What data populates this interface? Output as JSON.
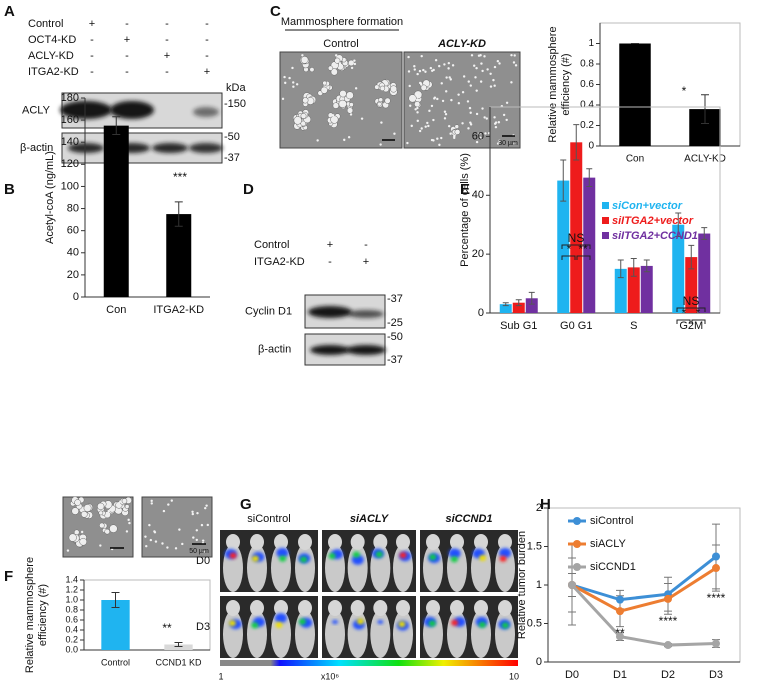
{
  "blot_A": {
    "label": "A",
    "rows": [
      {
        "name": "Control",
        "signs": [
          "+",
          "-",
          "-",
          "-"
        ]
      },
      {
        "name": "OCT4-KD",
        "signs": [
          "-",
          "+",
          "-",
          "-"
        ]
      },
      {
        "name": "ACLY-KD",
        "signs": [
          "-",
          "-",
          "+",
          "-"
        ]
      },
      {
        "name": "ITGA2-KD",
        "signs": [
          "-",
          "-",
          "-",
          "+"
        ]
      }
    ],
    "unit": "kDa",
    "bands": [
      {
        "name": "ACLY",
        "markers": [
          "-150"
        ]
      },
      {
        "name": "β-actin",
        "markers": [
          "-50",
          "-37"
        ]
      }
    ]
  },
  "images_C": {
    "label": "C",
    "title": "Mammosphere formation",
    "columns": [
      "Control",
      "ACLY-KD"
    ],
    "scale_bar": "30 µm"
  },
  "blot_D": {
    "label": "D",
    "rows": [
      {
        "name": "Control",
        "signs": [
          "+",
          "-"
        ]
      },
      {
        "name": "ITGA2-KD",
        "signs": [
          "-",
          "+"
        ]
      }
    ],
    "bands": [
      {
        "name": "Cyclin D1",
        "markers": [
          "-37",
          "-25"
        ]
      },
      {
        "name": "β-actin",
        "markers": [
          "-50",
          "-37"
        ]
      }
    ]
  },
  "images_F": {
    "scale_bar": "50 µm"
  },
  "images_G": {
    "label": "G",
    "columns": [
      "siControl",
      "siACLY",
      "siCCND1"
    ],
    "rows": [
      "D0",
      "D3"
    ],
    "colorbar": [
      "1",
      "x10⁶",
      "10"
    ]
  },
  "chart_data": [
    {
      "type": "bar",
      "ylabel": [
        "Relative mammosphere",
        "efficiency (#)"
      ],
      "categories": [
        "Con",
        "ACLY-KD"
      ],
      "values": [
        1,
        0.36
      ],
      "errors": [
        0,
        0.14
      ],
      "color": "#000000",
      "ylim": [
        0,
        1.2
      ],
      "yticks": [
        0,
        0.2,
        0.4,
        0.6,
        0.8,
        1
      ],
      "annotations": [
        "*"
      ]
    },
    {
      "type": "bar",
      "panel": "B",
      "ylabel": "Acetyl-coA (ng/mL)",
      "categories": [
        "Con",
        "ITGA2-KD"
      ],
      "values": [
        155,
        75
      ],
      "errors": [
        8,
        11
      ],
      "color": "#000000",
      "ylim": [
        0,
        180
      ],
      "yticks": [
        0,
        20,
        40,
        60,
        80,
        100,
        120,
        140,
        160,
        180
      ],
      "annotations": [
        "***"
      ]
    },
    {
      "type": "bar",
      "panel": "E",
      "ylabel": "Percentage of cells (%)",
      "categories": [
        "Sub G1",
        "G0 G1",
        "S",
        "G2M"
      ],
      "series": [
        {
          "name": "siCon+vector",
          "color": "#1fb4f0",
          "values": [
            3,
            45,
            15,
            30
          ],
          "errors": [
            0.5,
            7,
            3,
            4
          ]
        },
        {
          "name": "siITGA2+vector",
          "color": "#ee1c1c",
          "values": [
            3.5,
            58,
            15.5,
            19
          ],
          "errors": [
            1,
            6,
            3,
            4
          ]
        },
        {
          "name": "siITGA2+CCND1",
          "color": "#7030a0",
          "values": [
            5,
            46,
            16,
            27
          ],
          "errors": [
            2,
            3,
            2,
            2
          ]
        }
      ],
      "ylim": [
        0,
        70
      ],
      "yticks": [
        0,
        20,
        40,
        60
      ],
      "annotations": [
        "NS",
        "*",
        "**",
        "NS",
        "*",
        "*"
      ],
      "legend": "upper right"
    },
    {
      "type": "bar",
      "panel": "F",
      "ylabel": [
        "Relative mammosphere",
        "efficiency (#)"
      ],
      "categories": [
        "Control",
        "CCND1 KD"
      ],
      "values": [
        1.0,
        0.11
      ],
      "errors": [
        0.15,
        0.04
      ],
      "colors": [
        "#1fb4f0",
        "#d9d9d9"
      ],
      "ylim": [
        0,
        1.4
      ],
      "yticks": [
        {
          "value": 0,
          "label": "0.0"
        },
        {
          "value": 0.2,
          "label": "0.2"
        },
        {
          "value": 0.4,
          "label": "0.4"
        },
        {
          "value": 0.6,
          "label": "0.6"
        },
        {
          "value": 0.8,
          "label": "0.8"
        },
        {
          "value": 1,
          "label": "1.0"
        },
        {
          "value": 1.2,
          "label": "1.2"
        },
        {
          "value": 1.4,
          "label": "1.4"
        }
      ],
      "annotations": [
        "**"
      ]
    },
    {
      "type": "line",
      "panel": "H",
      "ylabel": "Relative tumor burden",
      "categories": [
        "D0",
        "D1",
        "D2",
        "D3"
      ],
      "series": [
        {
          "name": "siControl",
          "color": "#3d8fd6",
          "values": [
            1,
            0.81,
            0.88,
            1.37
          ],
          "errors": [
            0.52,
            0.12,
            0.22,
            0.42
          ]
        },
        {
          "name": "siACLY",
          "color": "#ed7d31",
          "values": [
            1,
            0.66,
            0.82,
            1.22
          ],
          "errors": [
            0.35,
            0.2,
            0.2,
            0.3
          ]
        },
        {
          "name": "siCCND1",
          "color": "#a5a5a5",
          "values": [
            1,
            0.33,
            0.22,
            0.24
          ],
          "errors": [
            0.15,
            0.05,
            0.02,
            0.05
          ]
        }
      ],
      "ylim": [
        0,
        2
      ],
      "yticks": [
        0,
        0.5,
        1,
        1.5,
        2
      ],
      "annotations": [
        "**",
        "****",
        "****"
      ],
      "legend": "upper left"
    }
  ]
}
